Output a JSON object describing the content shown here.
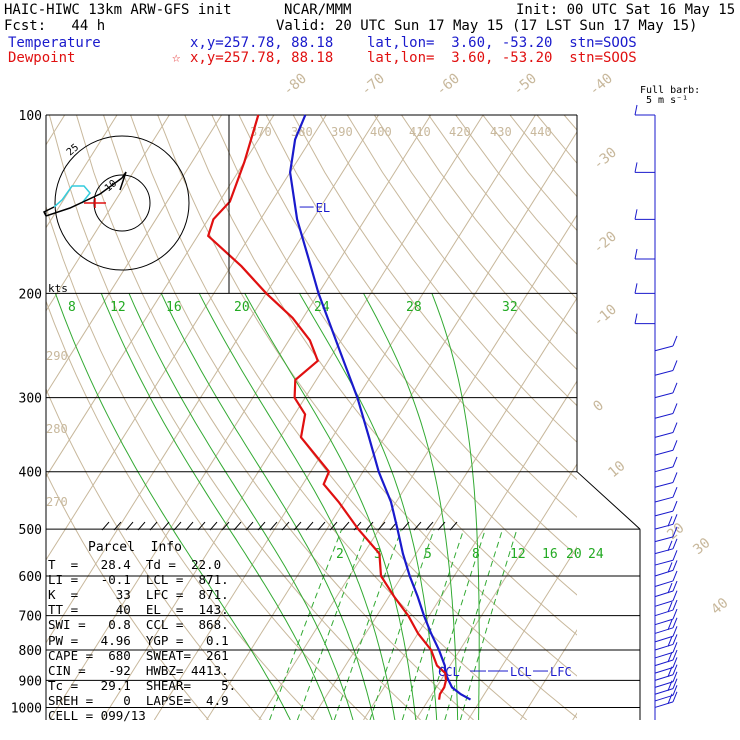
{
  "header": {
    "model": "HAIC-HIWC 13km ARW-GFS init",
    "org": "NCAR/MMM",
    "init": "Init: 00 UTC Sat 16 May 15",
    "fcst": "Fcst:   44 h",
    "valid": "Valid: 20 UTC Sun 17 May 15 (17 LST Sun 17 May 15)",
    "temp_label": "Temperature",
    "temp_loc": "x,y=257.78, 88.18    lat,lon=  3.60, -53.20  stn=SOOS",
    "dew_label": "Dewpoint",
    "dew_loc": "x,y=257.78, 88.18    lat,lon=  3.60, -53.20  stn=SOOS",
    "dew_star": "☆"
  },
  "barb_legend": {
    "line1": "Full barb:",
    "line2": "5 m s⁻¹"
  },
  "hodograph": {
    "speed_label": "kts",
    "ring_label": "25",
    "level_label": "10"
  },
  "chart_data": {
    "type": "line",
    "title": "",
    "pressure_ticks": [
      "100",
      "200",
      "300",
      "400",
      "500",
      "600",
      "700",
      "800",
      "900",
      "1000"
    ],
    "isotherm_labels": [
      "-80",
      "-70",
      "-60",
      "-50",
      "-40",
      "-30",
      "-20",
      "-10",
      "0",
      "10",
      "20",
      "30",
      "40"
    ],
    "theta_labels": [
      "370",
      "380",
      "390",
      "400",
      "410",
      "420",
      "430",
      "440",
      "290",
      "280",
      "270"
    ],
    "mixing_ratio_labels_upper": [
      "8",
      "12",
      "16",
      "20",
      "24",
      "28",
      "32"
    ],
    "mixing_ratio_labels_lower": [
      "2",
      "3",
      "5",
      "8",
      "12",
      "16",
      "20",
      "24"
    ],
    "annotations": [
      "EL",
      "CCL",
      "LCL",
      "LFC"
    ],
    "ylim": [
      100,
      1000
    ],
    "series": [
      {
        "name": "Temperature",
        "color": "#1a1acc",
        "pressure": [
          970,
          950,
          925,
          900,
          875,
          850,
          800,
          750,
          700,
          650,
          600,
          550,
          500,
          450,
          400,
          350,
          300,
          250,
          200,
          175,
          150,
          125,
          110,
          100
        ],
        "temp": [
          28,
          25.5,
          23,
          21.5,
          20,
          19,
          16,
          12.5,
          9,
          5.5,
          1.5,
          -2.5,
          -6.5,
          -11,
          -17,
          -23,
          -30,
          -39,
          -50,
          -56,
          -63,
          -70,
          -73,
          -74
        ]
      },
      {
        "name": "Dewpoint",
        "color": "#e01010",
        "pressure": [
          970,
          950,
          925,
          900,
          875,
          850,
          800,
          750,
          700,
          650,
          600,
          550,
          500,
          450,
          420,
          400,
          350,
          320,
          300,
          280,
          260,
          240,
          220,
          200,
          180,
          160,
          150,
          140,
          120,
          100
        ],
        "dewp": [
          22,
          21.5,
          21.5,
          21,
          20,
          17.5,
          14.5,
          10,
          6,
          1,
          -4,
          -7,
          -14,
          -21,
          -26,
          -26.5,
          -36,
          -38,
          -42,
          -44,
          -42,
          -46,
          -52,
          -60,
          -68,
          -78,
          -79,
          -78,
          -80,
          -83
        ]
      }
    ]
  },
  "parcel_info": {
    "title": "Parcel  Info",
    "rows": [
      "T  =   28.4  Td =  22.0",
      "LI =   -0.1  LCL =  871.",
      "K  =     33  LFC =  871.",
      "TT =     40  EL  =  143.",
      "SWI =   0.8  CCL =  868.",
      "PW =   4.96  YGP =   0.1",
      "CAPE =  680  SWEAT=  261",
      "CIN =   -92  HWBZ= 4413.",
      "Tc =   29.1  SHEAR=    5.",
      "SREH =    0  LAPSE=  4.9",
      "CELL = 099/13"
    ]
  }
}
